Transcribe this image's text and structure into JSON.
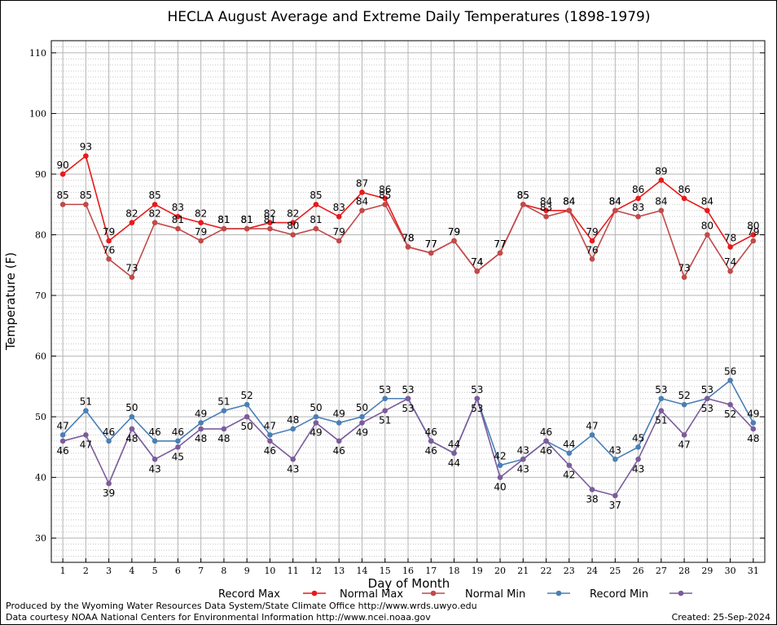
{
  "chart_data": {
    "type": "line",
    "title": "HECLA August Average and Extreme Daily Temperatures (1898-1979)",
    "xlabel": "Day of Month",
    "ylabel": "Temperature (F)",
    "xlim": [
      0.5,
      31.5
    ],
    "ylim": [
      26,
      112
    ],
    "y_ticks": [
      30,
      40,
      50,
      60,
      70,
      80,
      90,
      100,
      110
    ],
    "x": [
      1,
      2,
      3,
      4,
      5,
      6,
      7,
      8,
      9,
      10,
      11,
      12,
      13,
      14,
      15,
      16,
      17,
      18,
      19,
      20,
      21,
      22,
      23,
      24,
      25,
      26,
      27,
      28,
      29,
      30,
      31
    ],
    "grid": true,
    "legend_position": "bottom",
    "series": [
      {
        "name": "Record Max",
        "color": "#e8191c",
        "values": [
          90,
          93,
          79,
          82,
          85,
          83,
          82,
          81,
          81,
          82,
          82,
          85,
          83,
          87,
          86,
          78,
          77,
          79,
          74,
          77,
          85,
          84,
          84,
          79,
          84,
          86,
          89,
          86,
          84,
          78,
          80
        ]
      },
      {
        "name": "Normal Max",
        "color": "#c04a4a",
        "values": [
          85,
          85,
          76,
          73,
          82,
          81,
          79,
          81,
          81,
          81,
          80,
          81,
          79,
          84,
          85,
          78,
          77,
          79,
          74,
          77,
          85,
          83,
          84,
          76,
          84,
          83,
          84,
          73,
          80,
          74,
          79
        ]
      },
      {
        "name": "Normal Min",
        "color": "#4a7fb5",
        "values": [
          47,
          51,
          46,
          50,
          46,
          46,
          49,
          51,
          52,
          47,
          48,
          50,
          49,
          50,
          53,
          53,
          46,
          44,
          53,
          42,
          43,
          46,
          44,
          47,
          43,
          45,
          53,
          52,
          53,
          56,
          49
        ]
      },
      {
        "name": "Record Min",
        "color": "#7b5c9b",
        "values": [
          46,
          47,
          39,
          48,
          43,
          45,
          48,
          48,
          50,
          46,
          43,
          49,
          46,
          49,
          51,
          53,
          46,
          44,
          53,
          40,
          43,
          46,
          42,
          38,
          37,
          43,
          51,
          47,
          53,
          52,
          48
        ]
      }
    ]
  },
  "footer": {
    "produced_by": "Produced by the Wyoming Water Resources Data System/State Climate Office http://www.wrds.uwyo.edu",
    "courtesy": "Data courtesy NOAA National Centers for Environmental Information http://www.ncei.noaa.gov",
    "created": "Created:  25-Sep-2024"
  }
}
